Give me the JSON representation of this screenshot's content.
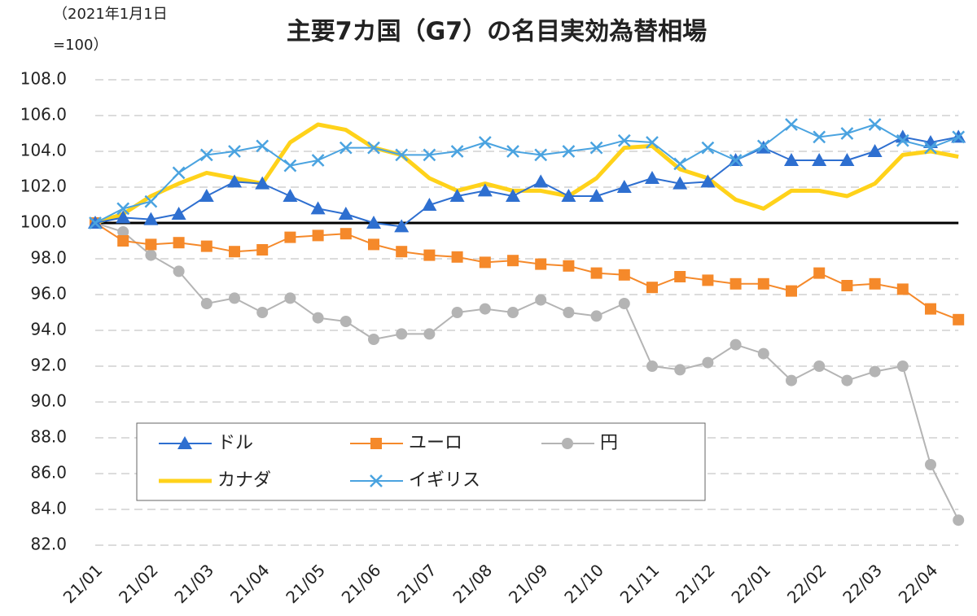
{
  "chart_data": {
    "type": "line",
    "title": "主要7カ国（G7）の名目実効為替相場",
    "ylabel": [
      "（2021年1月1日",
      "=100）"
    ],
    "categories": [
      "21/01",
      null,
      "21/02",
      null,
      "21/03",
      null,
      "21/04",
      null,
      "21/05",
      null,
      "21/06",
      null,
      "21/07",
      null,
      "21/08",
      null,
      "21/09",
      null,
      "21/10",
      null,
      "21/11",
      null,
      "21/12",
      null,
      "22/01",
      null,
      "22/02",
      null,
      "22/03",
      null,
      "22/04",
      null
    ],
    "ylim": [
      82,
      108
    ],
    "yticks": [
      {
        "value": 82,
        "label": "82.0"
      },
      {
        "value": 84,
        "label": "84.0"
      },
      {
        "value": 86,
        "label": "86.0"
      },
      {
        "value": 88,
        "label": "88.0"
      },
      {
        "value": 90,
        "label": "90.0"
      },
      {
        "value": 92,
        "label": "92.0"
      },
      {
        "value": 94,
        "label": "94.0"
      },
      {
        "value": 96,
        "label": "96.0"
      },
      {
        "value": 98,
        "label": "98.0"
      },
      {
        "value": 100,
        "label": "100.0"
      },
      {
        "value": 102,
        "label": "102.0"
      },
      {
        "value": 104,
        "label": "104.0"
      },
      {
        "value": 106,
        "label": "106.0"
      },
      {
        "value": 108,
        "label": "108.0"
      }
    ],
    "grid": true,
    "reference_line": 100,
    "series": [
      {
        "name": "ドル",
        "color": "#2e6fd0",
        "marker": "triangle",
        "values": [
          100,
          100.3,
          100.2,
          100.5,
          101.5,
          102.3,
          102.2,
          101.5,
          100.8,
          100.5,
          100,
          99.8,
          101,
          101.5,
          101.8,
          101.5,
          102.3,
          101.5,
          101.5,
          102,
          102.5,
          102.2,
          102.3,
          103.5,
          104.2,
          103.5,
          103.5,
          103.5,
          104,
          104.8,
          104.5,
          104.8
        ]
      },
      {
        "name": "ユーロ",
        "color": "#f5892a",
        "marker": "square",
        "values": [
          100,
          99,
          98.8,
          98.9,
          98.7,
          98.4,
          98.5,
          99.2,
          99.3,
          99.4,
          98.8,
          98.4,
          98.2,
          98.1,
          97.8,
          97.9,
          97.7,
          97.6,
          97.2,
          97.1,
          96.4,
          97,
          96.8,
          96.6,
          96.6,
          96.2,
          97.2,
          96.5,
          96.6,
          96.3,
          95.2,
          94.6
        ]
      },
      {
        "name": "円",
        "color": "#b4b4b4",
        "marker": "circle",
        "values": [
          100,
          99.5,
          98.2,
          97.3,
          95.5,
          95.8,
          95,
          95.8,
          94.7,
          94.5,
          93.5,
          93.8,
          93.8,
          95,
          95.2,
          95,
          95.7,
          95,
          94.8,
          95.5,
          92,
          91.8,
          92.2,
          93.2,
          92.7,
          91.2,
          92,
          91.2,
          91.7,
          92,
          86.5,
          83.4
        ]
      },
      {
        "name": "カナダ",
        "color": "#ffd21a",
        "marker": "none",
        "values": [
          100,
          100.5,
          101.5,
          102.2,
          102.8,
          102.5,
          102.2,
          104.5,
          105.5,
          105.2,
          104.2,
          103.8,
          102.5,
          101.8,
          102.2,
          101.8,
          101.8,
          101.5,
          102.5,
          104.2,
          104.3,
          103,
          102.5,
          101.3,
          100.8,
          101.8,
          101.8,
          101.5,
          102.2,
          103.8,
          104,
          103.7
        ]
      },
      {
        "name": "イギリス",
        "color": "#4aa3e0",
        "marker": "cross",
        "values": [
          100,
          100.8,
          101.2,
          102.8,
          103.8,
          104,
          104.3,
          103.2,
          103.5,
          104.2,
          104.2,
          103.8,
          103.8,
          104,
          104.5,
          104,
          103.8,
          104,
          104.2,
          104.6,
          104.5,
          103.3,
          104.2,
          103.5,
          104.3,
          105.5,
          104.8,
          105,
          105.5,
          104.6,
          104.2,
          104.8
        ]
      }
    ]
  }
}
